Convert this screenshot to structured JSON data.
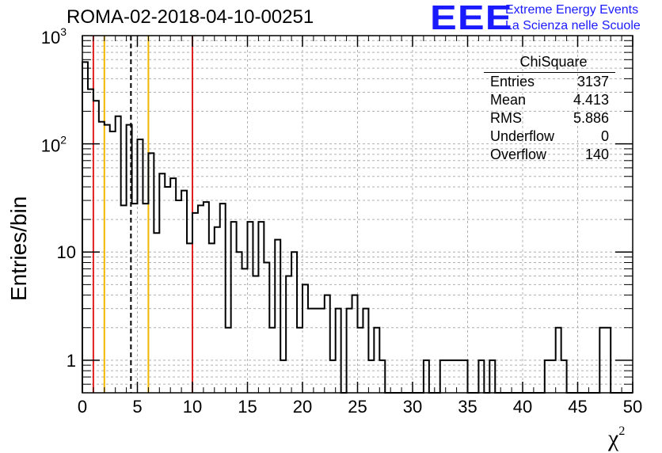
{
  "header": {
    "title": "ROMA-02-2018-04-10-00251",
    "logo_text": "EEE",
    "logo_line1": "Extreme Energy Events",
    "logo_line2": "La Scienza nelle Scuole"
  },
  "stats": {
    "title": "ChiSquare",
    "rows": [
      {
        "label": "Entries",
        "value": "3137"
      },
      {
        "label": "Mean",
        "value": "4.413"
      },
      {
        "label": "RMS",
        "value": "5.886"
      },
      {
        "label": "Underflow",
        "value": "0"
      },
      {
        "label": "Overflow",
        "value": "140"
      }
    ]
  },
  "chart_data": {
    "type": "histogram",
    "ylabel": "Entries/bin",
    "xlabel_main": "χ",
    "xlabel_sup": "2",
    "xlim": [
      0,
      50
    ],
    "ylim": [
      0.5,
      1000
    ],
    "yscale": "log",
    "grid": true,
    "bin_width": 0.5,
    "x_ticks": [
      {
        "value": 0,
        "label": "0"
      },
      {
        "value": 5,
        "label": "5"
      },
      {
        "value": 10,
        "label": "10"
      },
      {
        "value": 15,
        "label": "15"
      },
      {
        "value": 20,
        "label": "20"
      },
      {
        "value": 25,
        "label": "25"
      },
      {
        "value": 30,
        "label": "30"
      },
      {
        "value": 35,
        "label": "35"
      },
      {
        "value": 40,
        "label": "40"
      },
      {
        "value": 45,
        "label": "45"
      },
      {
        "value": 50,
        "label": "50"
      }
    ],
    "y_ticks": [
      {
        "value": 1,
        "label": "1"
      },
      {
        "value": 10,
        "label": "10"
      },
      {
        "value": 100,
        "label": "10",
        "sup": "2"
      },
      {
        "value": 1000,
        "label": "10",
        "sup": "3"
      }
    ],
    "counts": [
      570,
      320,
      250,
      160,
      150,
      130,
      180,
      27,
      150,
      28,
      110,
      28,
      82,
      15,
      53,
      40,
      48,
      30,
      37,
      12,
      23,
      27,
      29,
      12,
      17,
      28,
      2,
      19,
      10,
      7,
      19,
      6,
      19,
      8,
      2,
      13,
      1,
      6,
      10,
      2,
      5,
      3,
      3,
      3,
      4,
      1,
      3,
      0,
      3,
      4,
      2,
      3,
      1,
      2,
      1,
      0,
      0,
      0,
      0,
      0,
      0,
      0,
      1,
      0,
      0,
      1,
      1,
      1,
      1,
      1,
      0,
      0,
      1,
      0,
      1,
      0,
      0,
      0,
      0,
      0,
      0,
      0,
      0,
      0,
      1,
      1,
      2,
      1,
      0,
      0,
      0,
      0,
      0,
      0,
      2,
      2,
      0,
      0,
      0,
      0
    ],
    "reference_lines": [
      {
        "x": 1,
        "color": "#e02020",
        "style": "solid"
      },
      {
        "x": 2,
        "color": "#f2b800",
        "style": "solid"
      },
      {
        "x": 4.413,
        "color": "#000000",
        "style": "dashed"
      },
      {
        "x": 6,
        "color": "#f2b800",
        "style": "solid"
      },
      {
        "x": 10,
        "color": "#e02020",
        "style": "solid"
      }
    ]
  }
}
